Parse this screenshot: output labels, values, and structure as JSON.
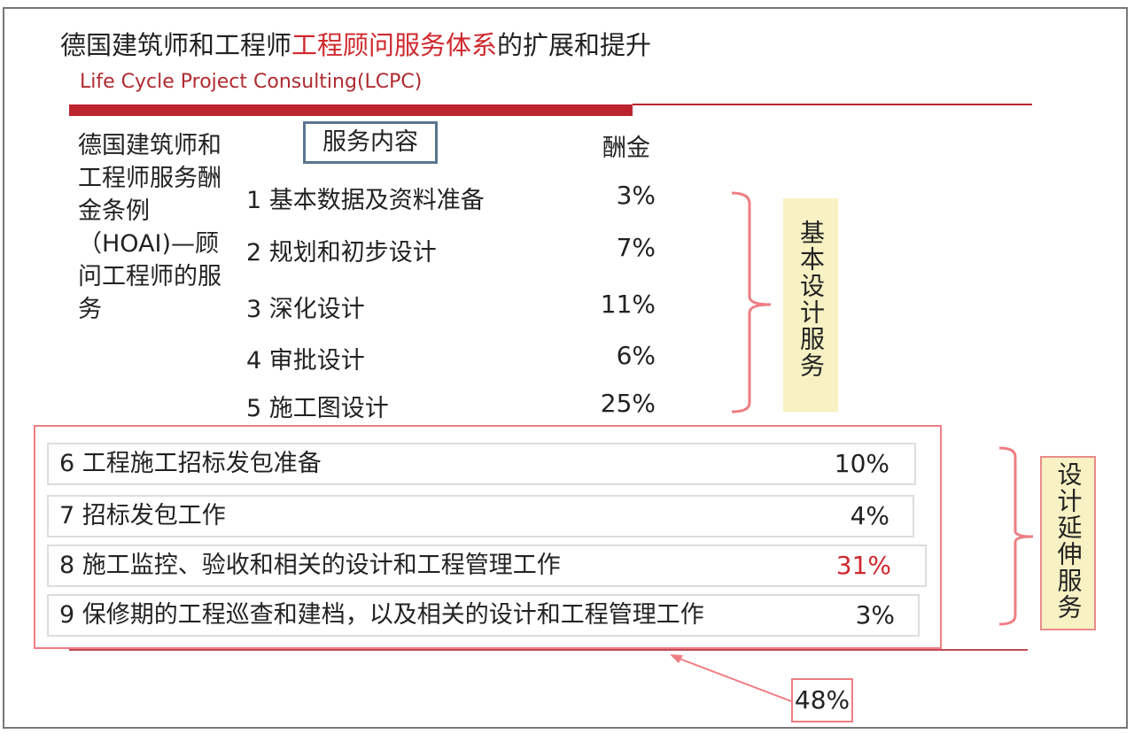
{
  "title": {
    "part1": "德国建筑师和工程师",
    "part2": "工程顾问服务体系",
    "part3": "的扩展和提升"
  },
  "subtitle": "Life Cycle Project Consulting(LCPC)",
  "left_label": "德国建筑师和工程师服务酬金条例（HOAI)—顾问工程师的服务",
  "header": {
    "services": "服务内容",
    "fee": "酬金"
  },
  "basic_items": [
    {
      "label": "1 基本数据及资料准备",
      "fee": "3%"
    },
    {
      "label": "2 规划和初步设计",
      "fee": "7%"
    },
    {
      "label": "3 深化设计",
      "fee": "11%"
    },
    {
      "label": "4 审批设计",
      "fee": "6%"
    },
    {
      "label": "5 施工图设计",
      "fee": "25%"
    }
  ],
  "extended_items": [
    {
      "label": "6 工程施工招标发包准备",
      "fee": "10%"
    },
    {
      "label": "7 招标发包工作",
      "fee": "4%"
    },
    {
      "label": "8 施工监控、验收和相关的设计和工程管理工作",
      "fee": "31%",
      "highlight_color": "#d0282e"
    },
    {
      "label": "9 保修期的工程巡查和建档，以及相关的设计和工程管理工作",
      "fee": "3%"
    }
  ],
  "group_basic": "基本设计服务",
  "group_extended": "设计延伸服务",
  "extended_total": "48%",
  "colors": {
    "accent_red": "#bd2430",
    "bracket": "#ee7e84",
    "label_bg": "#f7f1c3"
  }
}
